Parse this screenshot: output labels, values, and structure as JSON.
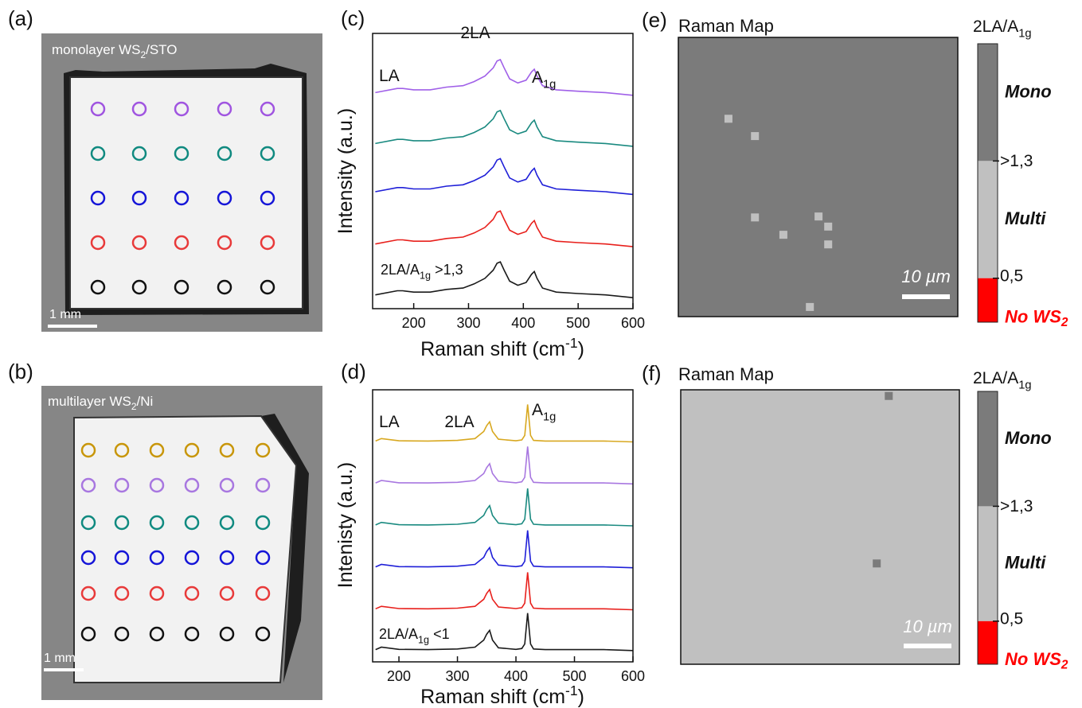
{
  "images": [
    {
      "panel": "(a)",
      "caption": [
        "monolayer WS",
        "2",
        "/STO"
      ],
      "scale_bar": "1 mm",
      "row_colors": [
        "#a055e0",
        "#108a80",
        "#1515d8",
        "#e83a3a",
        "#111111"
      ]
    },
    {
      "panel": "(b)",
      "caption": [
        "multilayer WS",
        "2",
        "/Ni"
      ],
      "scale_bar": "1 mm",
      "row_colors": [
        "#c8960a",
        "#a877e0",
        "#108a80",
        "#1515d8",
        "#e83a3a",
        "#111111"
      ]
    }
  ],
  "chart_data": [
    {
      "type": "line",
      "panel": "(c)",
      "x_label": [
        "Raman shift (cm",
        "-1",
        ")"
      ],
      "y_label": "Intensity (a.u.)",
      "annotations": [
        "LA",
        "2LA",
        [
          "A",
          "1g"
        ],
        [
          "2LA/A",
          "1g",
          " >1,3"
        ]
      ],
      "xlim": [
        125,
        600
      ],
      "ylim": [
        0,
        10
      ],
      "xticks": [
        200,
        300,
        400,
        500,
        600
      ],
      "x": [
        130,
        170,
        180,
        200,
        230,
        260,
        290,
        310,
        330,
        345,
        352,
        358,
        365,
        375,
        390,
        405,
        415,
        420,
        425,
        435,
        460,
        500,
        550,
        600
      ],
      "series": [
        {
          "color": "#1a1a1a",
          "values": [
            0.5,
            0.65,
            0.65,
            0.6,
            0.6,
            0.7,
            0.75,
            0.9,
            1.1,
            1.4,
            1.65,
            1.7,
            1.4,
            1.0,
            0.85,
            0.95,
            1.25,
            1.35,
            1.1,
            0.75,
            0.6,
            0.55,
            0.5,
            0.4
          ]
        },
        {
          "color": "#e8201c",
          "values": [
            2.35,
            2.5,
            2.5,
            2.45,
            2.45,
            2.55,
            2.6,
            2.75,
            2.95,
            3.25,
            3.5,
            3.55,
            3.25,
            2.85,
            2.7,
            2.8,
            3.1,
            3.2,
            2.95,
            2.6,
            2.45,
            2.4,
            2.35,
            2.25
          ]
        },
        {
          "color": "#1f1fd8",
          "values": [
            4.25,
            4.4,
            4.4,
            4.35,
            4.35,
            4.45,
            4.5,
            4.65,
            4.85,
            5.15,
            5.4,
            5.45,
            5.15,
            4.75,
            4.6,
            4.7,
            5.0,
            5.1,
            4.85,
            4.5,
            4.35,
            4.3,
            4.25,
            4.15
          ]
        },
        {
          "color": "#1a8a80",
          "values": [
            6.0,
            6.15,
            6.15,
            6.1,
            6.1,
            6.2,
            6.25,
            6.4,
            6.6,
            6.9,
            7.15,
            7.2,
            6.9,
            6.5,
            6.35,
            6.45,
            6.75,
            6.85,
            6.6,
            6.25,
            6.1,
            6.05,
            6.0,
            5.9
          ]
        },
        {
          "color": "#a060e8",
          "values": [
            7.85,
            8.0,
            8.0,
            7.95,
            7.95,
            8.05,
            8.1,
            8.25,
            8.45,
            8.75,
            9.0,
            9.05,
            8.75,
            8.35,
            8.2,
            8.3,
            8.6,
            8.7,
            8.45,
            8.1,
            7.95,
            7.9,
            7.85,
            7.75
          ]
        }
      ]
    },
    {
      "type": "line",
      "panel": "(d)",
      "x_label": [
        "Raman shift (cm",
        "-1",
        ")"
      ],
      "y_label": "Intenisty (a.u.)",
      "annotations": [
        "LA",
        "2LA",
        [
          "A",
          "1g"
        ],
        [
          "2LA/A",
          "1g",
          " <1"
        ]
      ],
      "xlim": [
        155,
        600
      ],
      "ylim": [
        0,
        12
      ],
      "xticks": [
        200,
        300,
        400,
        500,
        600
      ],
      "x": [
        160,
        170,
        200,
        250,
        300,
        330,
        345,
        350,
        355,
        360,
        370,
        400,
        410,
        415,
        420,
        425,
        430,
        450,
        500,
        550,
        600
      ],
      "series": [
        {
          "color": "#1a1a1a",
          "values": [
            0.54,
            0.65,
            0.55,
            0.54,
            0.57,
            0.65,
            0.96,
            1.22,
            1.39,
            0.96,
            0.62,
            0.55,
            0.59,
            0.79,
            2.15,
            0.79,
            0.57,
            0.54,
            0.54,
            0.54,
            0.5
          ]
        },
        {
          "color": "#e8201c",
          "values": [
            2.34,
            2.45,
            2.35,
            2.34,
            2.37,
            2.45,
            2.76,
            3.02,
            3.19,
            2.76,
            2.42,
            2.35,
            2.39,
            2.59,
            3.95,
            2.59,
            2.37,
            2.34,
            2.34,
            2.34,
            2.3
          ]
        },
        {
          "color": "#1f1fd8",
          "values": [
            4.19,
            4.3,
            4.2,
            4.19,
            4.22,
            4.3,
            4.61,
            4.87,
            5.04,
            4.61,
            4.27,
            4.2,
            4.24,
            4.44,
            5.8,
            4.44,
            4.22,
            4.19,
            4.19,
            4.19,
            4.15
          ]
        },
        {
          "color": "#1a8a80",
          "values": [
            6.04,
            6.15,
            6.05,
            6.04,
            6.07,
            6.15,
            6.46,
            6.72,
            6.89,
            6.46,
            6.12,
            6.05,
            6.09,
            6.29,
            7.65,
            6.29,
            6.07,
            6.04,
            6.04,
            6.04,
            6.0
          ]
        },
        {
          "color": "#a877e0",
          "values": [
            7.89,
            8.0,
            7.9,
            7.89,
            7.92,
            8.0,
            8.31,
            8.57,
            8.74,
            8.31,
            7.97,
            7.9,
            7.94,
            8.14,
            9.5,
            8.14,
            7.92,
            7.89,
            7.89,
            7.89,
            7.85
          ]
        },
        {
          "color": "#d8a820",
          "values": [
            9.74,
            9.85,
            9.75,
            9.74,
            9.77,
            9.85,
            10.16,
            10.42,
            10.59,
            10.16,
            9.82,
            9.75,
            9.79,
            9.99,
            11.35,
            9.99,
            9.77,
            9.74,
            9.74,
            9.74,
            9.7
          ]
        }
      ]
    },
    {
      "type": "map",
      "panel": "(e)",
      "title": "Raman Map",
      "xlim": [
        0,
        58
      ],
      "ylim": [
        0,
        58
      ],
      "background": 2.0,
      "points": {
        "x": [
          10.4,
          15.9,
          15.9,
          21.8,
          29.1,
          31.1,
          31.1,
          27.3
        ],
        "y": [
          16.9,
          20.5,
          37.4,
          41.0,
          37.2,
          39.3,
          43.0,
          56.0
        ],
        "values": [
          1.0,
          1.0,
          1.0,
          1.0,
          1.0,
          1.0,
          1.0,
          1.0
        ]
      },
      "scale_bar": "10 µm",
      "colorbar": {
        "title": [
          "2LA/A",
          "1g"
        ],
        "lim": [
          0.2,
          2.1
        ],
        "ticks": [
          {
            "value": 1.3,
            "label": ">1,3"
          },
          {
            "value": 0.5,
            "label": "0,5"
          }
        ],
        "bands": [
          {
            "label": "Mono",
            "color": "#7b7b7b"
          },
          {
            "label": "Multi",
            "color": "#c0c0c0"
          },
          {
            "label": [
              "No WS",
              "2"
            ],
            "color": "#ff0000"
          }
        ]
      }
    },
    {
      "type": "map",
      "panel": "(f)",
      "title": "Raman Map",
      "xlim": [
        0,
        58
      ],
      "ylim": [
        0,
        58
      ],
      "background": 1.0,
      "points": {
        "x": [
          43.3,
          40.8
        ],
        "y": [
          1.3,
          36.7
        ],
        "values": [
          2.0,
          2.0
        ]
      },
      "scale_bar": "10 µm",
      "colorbar": {
        "title": [
          "2LA/A",
          "1g"
        ],
        "lim": [
          0.2,
          2.1
        ],
        "ticks": [
          {
            "value": 1.3,
            "label": ">1,3"
          },
          {
            "value": 0.5,
            "label": "0,5"
          }
        ],
        "bands": [
          {
            "label": "Mono",
            "color": "#7b7b7b"
          },
          {
            "label": "Multi",
            "color": "#c0c0c0"
          },
          {
            "label": [
              "No WS",
              "2"
            ],
            "color": "#ff0000"
          }
        ]
      }
    }
  ]
}
